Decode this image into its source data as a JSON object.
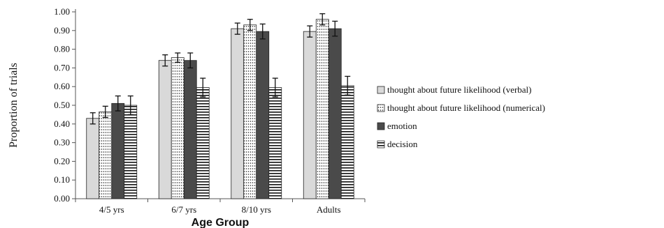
{
  "chart_data": {
    "type": "bar",
    "xlabel": "Age Group",
    "ylabel": "Proportion of trials",
    "ylim": [
      0,
      1.0
    ],
    "yticks": [
      "0.00",
      "0.10",
      "0.20",
      "0.30",
      "0.40",
      "0.50",
      "0.60",
      "0.70",
      "0.80",
      "0.90",
      "1.00"
    ],
    "categories": [
      "4/5 yrs",
      "6/7 yrs",
      "8/10 yrs",
      "Adults"
    ],
    "legend_position": "right",
    "series": [
      {
        "name": "thought about future likelihood (verbal)",
        "pattern": "light-gray",
        "color": "#d9d9d9",
        "values": [
          0.43,
          0.74,
          0.91,
          0.895
        ],
        "errors": [
          0.03,
          0.03,
          0.03,
          0.03
        ]
      },
      {
        "name": "thought about future likelihood (numerical)",
        "pattern": "dotted",
        "color": "#ffffff",
        "values": [
          0.465,
          0.755,
          0.93,
          0.96
        ],
        "errors": [
          0.03,
          0.025,
          0.03,
          0.03
        ]
      },
      {
        "name": "emotion",
        "pattern": "dark-gray",
        "color": "#4a4a4a",
        "values": [
          0.51,
          0.74,
          0.895,
          0.91
        ],
        "errors": [
          0.04,
          0.04,
          0.04,
          0.04
        ]
      },
      {
        "name": "decision",
        "pattern": "horizontal-stripes",
        "color": "#ffffff",
        "values": [
          0.5,
          0.595,
          0.595,
          0.605
        ],
        "errors": [
          0.05,
          0.05,
          0.05,
          0.05
        ]
      }
    ]
  }
}
